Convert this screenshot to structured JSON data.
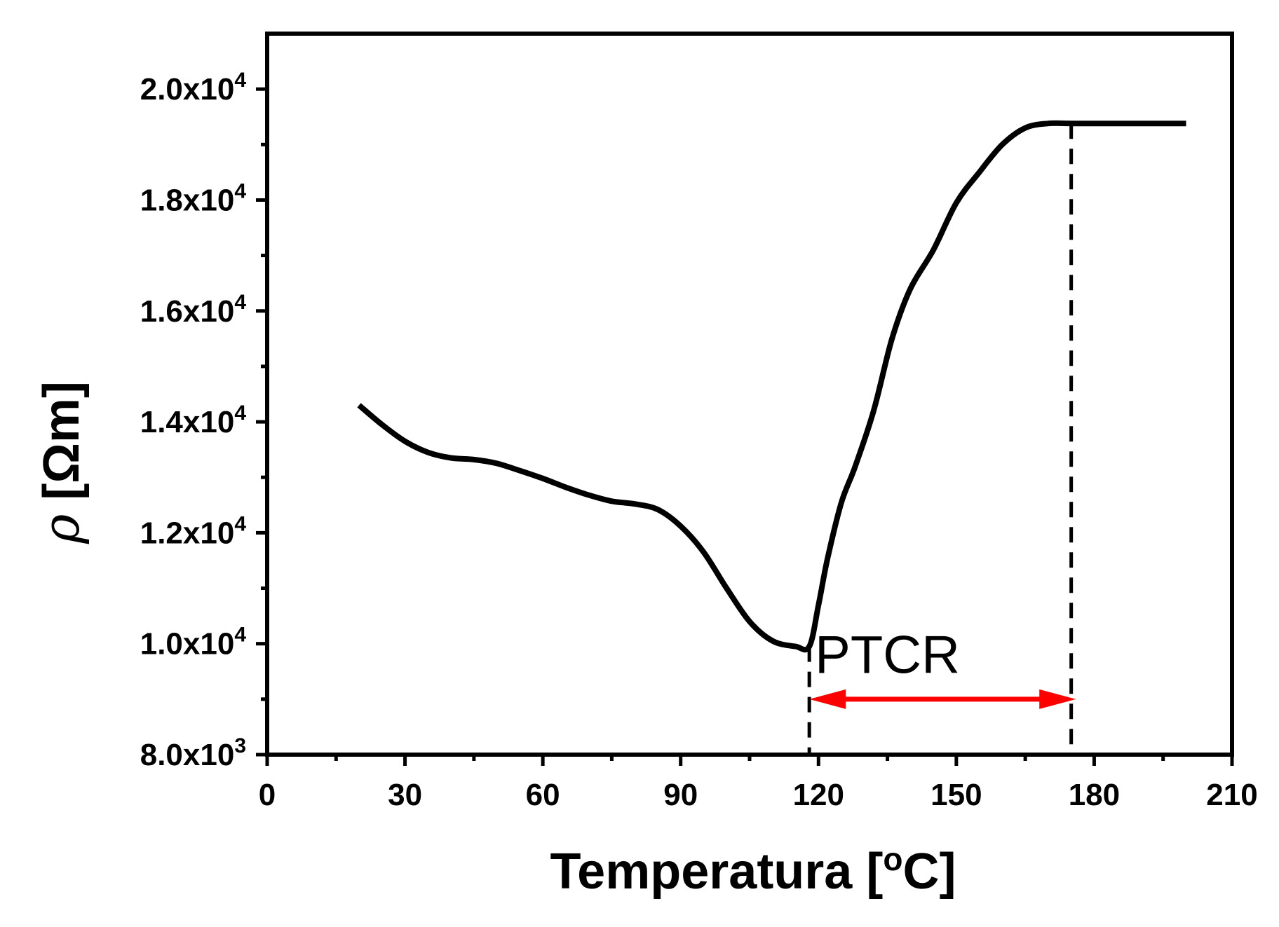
{
  "chart_data": {
    "type": "line",
    "title": "",
    "xlabel": "Temperatura [",
    "xlabel_sup": "o",
    "xlabel_suffix": "C]",
    "ylabel_symbol": "ρ",
    "ylabel_unit": " [Ωm]",
    "xlim": [
      0,
      210
    ],
    "ylim": [
      8000,
      21000
    ],
    "x_ticks": [
      0,
      30,
      60,
      90,
      120,
      150,
      180,
      210
    ],
    "x_minor_ticks": [
      15,
      45,
      75,
      105,
      135,
      165,
      195
    ],
    "y_ticks": [
      {
        "value": 8000,
        "mantissa": "8.0x10",
        "exp": "3"
      },
      {
        "value": 10000,
        "mantissa": "1.0x10",
        "exp": "4"
      },
      {
        "value": 12000,
        "mantissa": "1.2x10",
        "exp": "4"
      },
      {
        "value": 14000,
        "mantissa": "1.4x10",
        "exp": "4"
      },
      {
        "value": 16000,
        "mantissa": "1.6x10",
        "exp": "4"
      },
      {
        "value": 18000,
        "mantissa": "1.8x10",
        "exp": "4"
      },
      {
        "value": 20000,
        "mantissa": "2.0x10",
        "exp": "4"
      }
    ],
    "y_minor_ticks": [
      9000,
      11000,
      13000,
      15000,
      17000,
      19000
    ],
    "series": [
      {
        "name": "rho",
        "color": "#000000",
        "x": [
          20,
          25,
          30,
          35,
          40,
          45,
          50,
          55,
          60,
          65,
          70,
          75,
          80,
          85,
          90,
          95,
          100,
          105,
          110,
          115,
          118,
          120,
          122,
          125,
          128,
          132,
          136,
          140,
          145,
          150,
          155,
          160,
          165,
          170,
          175,
          180,
          190,
          200
        ],
        "y": [
          14300,
          13950,
          13650,
          13450,
          13350,
          13320,
          13250,
          13120,
          12980,
          12820,
          12680,
          12570,
          12520,
          12420,
          12120,
          11650,
          11000,
          10400,
          10050,
          9950,
          9950,
          10700,
          11550,
          12550,
          13200,
          14200,
          15500,
          16400,
          17100,
          17950,
          18500,
          19000,
          19300,
          19380,
          19380,
          19380,
          19380,
          19380
        ]
      }
    ],
    "annotations": {
      "label": "PTCR",
      "label_x": 135,
      "label_y": 9800,
      "arrow_from_x": 118,
      "arrow_to_x": 176,
      "arrow_y": 9000,
      "arrow_color": "#ff0000",
      "dashed_lines": [
        {
          "x": 118,
          "y_top": 9950
        },
        {
          "x": 175,
          "y_top": 19380
        }
      ]
    }
  }
}
